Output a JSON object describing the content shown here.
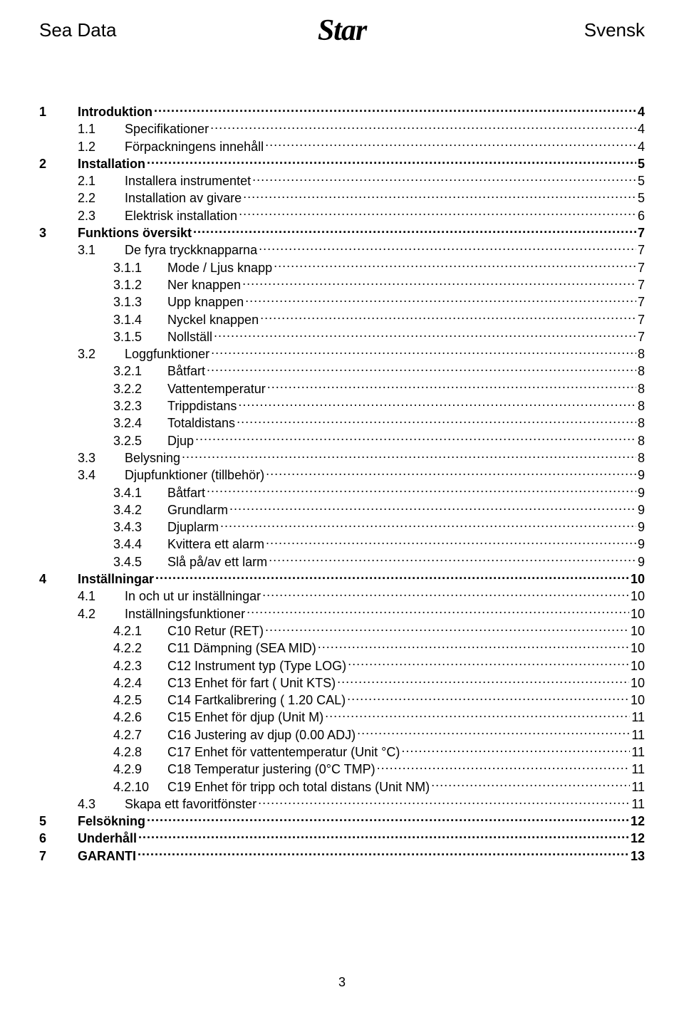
{
  "header": {
    "left": "Sea Data",
    "logo": "Star",
    "right": "Svensk"
  },
  "toc": [
    {
      "level": 1,
      "num": "1",
      "title": "Introduktion",
      "page": "4"
    },
    {
      "level": 2,
      "num": "1.1",
      "title": "Specifikationer",
      "page": "4"
    },
    {
      "level": 2,
      "num": "1.2",
      "title": "Förpackningens innehåll",
      "page": "4"
    },
    {
      "level": 1,
      "num": "2",
      "title": "Installation",
      "page": "5"
    },
    {
      "level": 2,
      "num": "2.1",
      "title": "Installera instrumentet",
      "page": "5"
    },
    {
      "level": 2,
      "num": "2.2",
      "title": "Installation av givare",
      "page": "5"
    },
    {
      "level": 2,
      "num": "2.3",
      "title": "Elektrisk installation",
      "page": "6"
    },
    {
      "level": 1,
      "num": "3",
      "title": "Funktions översikt",
      "page": "7"
    },
    {
      "level": 2,
      "num": "3.1",
      "title": "De fyra tryckknapparna",
      "page": "7"
    },
    {
      "level": 3,
      "num": "3.1.1",
      "title": "Mode / Ljus knapp",
      "page": "7"
    },
    {
      "level": 3,
      "num": "3.1.2",
      "title": "Ner knappen",
      "page": "7"
    },
    {
      "level": 3,
      "num": "3.1.3",
      "title": "Upp knappen",
      "page": "7"
    },
    {
      "level": 3,
      "num": "3.1.4",
      "title": "Nyckel knappen",
      "page": "7"
    },
    {
      "level": 3,
      "num": "3.1.5",
      "title": "Nollställ",
      "page": "7"
    },
    {
      "level": 2,
      "num": "3.2",
      "title": "Loggfunktioner",
      "page": "8"
    },
    {
      "level": 3,
      "num": "3.2.1",
      "title": "Båtfart",
      "page": "8"
    },
    {
      "level": 3,
      "num": "3.2.2",
      "title": "Vattentemperatur",
      "page": "8"
    },
    {
      "level": 3,
      "num": "3.2.3",
      "title": "Trippdistans",
      "page": "8"
    },
    {
      "level": 3,
      "num": "3.2.4",
      "title": "Totaldistans",
      "page": "8"
    },
    {
      "level": 3,
      "num": "3.2.5",
      "title": "Djup",
      "page": "8"
    },
    {
      "level": 2,
      "num": "3.3",
      "title": "Belysning",
      "page": "8"
    },
    {
      "level": 2,
      "num": "3.4",
      "title": "Djupfunktioner (tillbehör)",
      "page": "9"
    },
    {
      "level": 3,
      "num": "3.4.1",
      "title": "Båtfart",
      "page": "9"
    },
    {
      "level": 3,
      "num": "3.4.2",
      "title": "Grundlarm",
      "page": "9"
    },
    {
      "level": 3,
      "num": "3.4.3",
      "title": "Djuplarm",
      "page": "9"
    },
    {
      "level": 3,
      "num": "3.4.4",
      "title": "Kvittera ett alarm",
      "page": "9"
    },
    {
      "level": 3,
      "num": "3.4.5",
      "title": "Slå på/av ett larm",
      "page": "9"
    },
    {
      "level": 1,
      "num": "4",
      "title": "Inställningar",
      "page": "10"
    },
    {
      "level": 2,
      "num": "4.1",
      "title": "In och ut ur inställningar",
      "page": "10"
    },
    {
      "level": 2,
      "num": "4.2",
      "title": "Inställningsfunktioner",
      "page": "10"
    },
    {
      "level": 3,
      "num": "4.2.1",
      "title": "C10 Retur (RET)",
      "page": "10"
    },
    {
      "level": 3,
      "num": "4.2.2",
      "title": "C11 Dämpning (SEA MID)",
      "page": "10"
    },
    {
      "level": 3,
      "num": "4.2.3",
      "title": "C12 Instrument typ (Type LOG)",
      "page": "10"
    },
    {
      "level": 3,
      "num": "4.2.4",
      "title": "C13 Enhet för fart ( Unit KTS)",
      "page": "10"
    },
    {
      "level": 3,
      "num": "4.2.5",
      "title": "C14 Fartkalibrering ( 1.20 CAL)",
      "page": "10"
    },
    {
      "level": 3,
      "num": "4.2.6",
      "title": "C15  Enhet för djup (Unit M)",
      "page": "11"
    },
    {
      "level": 3,
      "num": "4.2.7",
      "title": "C16  Justering av djup (0.00 ADJ)",
      "page": "11"
    },
    {
      "level": 3,
      "num": "4.2.8",
      "title": "C17 Enhet för vattentemperatur (Unit °C)",
      "page": "11"
    },
    {
      "level": 3,
      "num": "4.2.9",
      "title": "C18 Temperatur justering (0°C TMP)",
      "page": "11"
    },
    {
      "level": 3,
      "num": "4.2.10",
      "title": "C19 Enhet för tripp och total distans (Unit NM)",
      "page": "11"
    },
    {
      "level": 2,
      "num": "4.3",
      "title": "Skapa ett favoritfönster",
      "page": "11"
    },
    {
      "level": 1,
      "num": "5",
      "title": "Felsökning",
      "page": "12"
    },
    {
      "level": 1,
      "num": "6",
      "title": "Underhåll",
      "page": "12"
    },
    {
      "level": 1,
      "num": "7",
      "title": "GARANTI",
      "page": "13"
    }
  ],
  "page_number": "3"
}
